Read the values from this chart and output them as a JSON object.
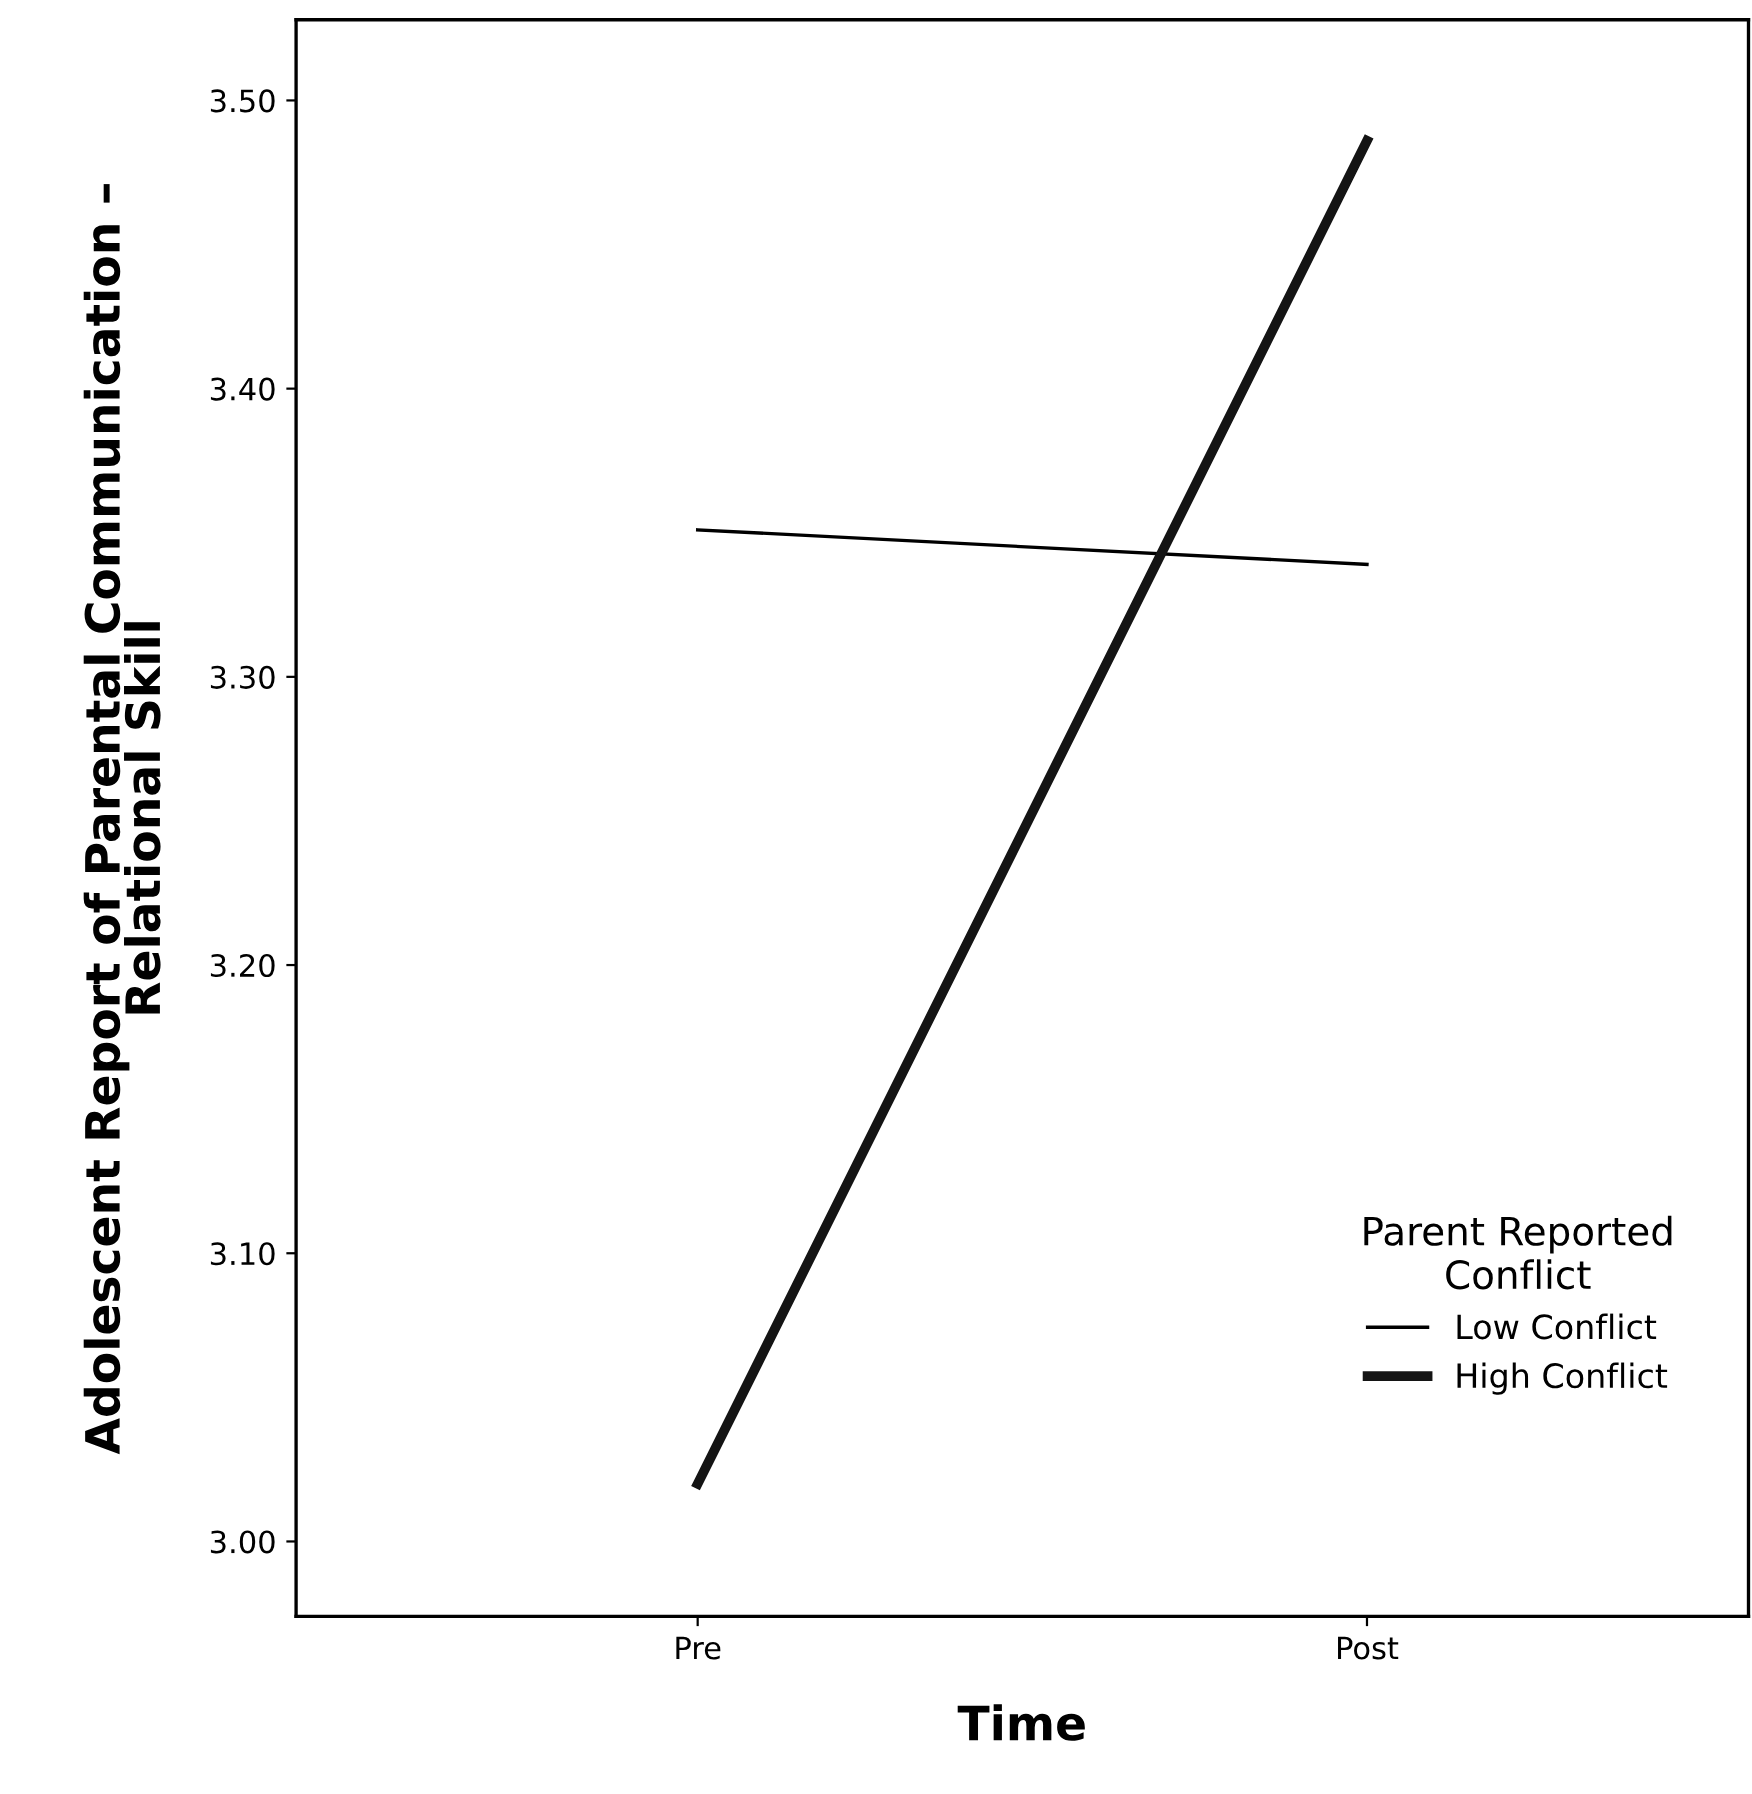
{
  "chart_data": {
    "type": "line",
    "xlabel": "Time",
    "ylabel": "Adolescent Report of Parental Communication –\nRelational Skill",
    "legend_title": "Parent Reported\nConflict",
    "categories": [
      "Pre",
      "Post"
    ],
    "series": [
      {
        "name": "Low Conflict",
        "color": "#000000",
        "values": [
          3.351,
          3.339
        ]
      },
      {
        "name": "High Conflict",
        "color": "#141414",
        "values": [
          3.02,
          3.486
        ]
      }
    ],
    "ylim": [
      2.974,
      3.528
    ],
    "yticks": [
      {
        "value": 3.0,
        "label": "3.00"
      },
      {
        "value": 3.1,
        "label": "3.10"
      },
      {
        "value": 3.2,
        "label": "3.20"
      },
      {
        "value": 3.3,
        "label": "3.30"
      },
      {
        "value": 3.4,
        "label": "3.40"
      },
      {
        "value": 3.5,
        "label": "3.50"
      }
    ],
    "grid": false,
    "legend": "lower right",
    "line_style": "solid"
  }
}
